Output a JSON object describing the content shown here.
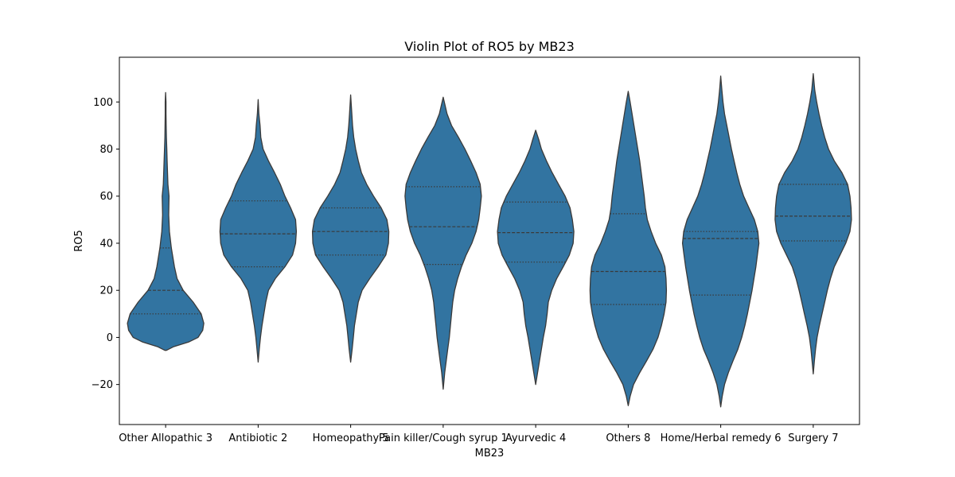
{
  "chart_data": {
    "type": "violin",
    "title": "Violin Plot of RO5 by MB23",
    "xlabel": "MB23",
    "ylabel": "RO5",
    "ylim": [
      -37,
      119
    ],
    "yticks": [
      -20,
      0,
      20,
      40,
      60,
      80,
      100
    ],
    "grid": false,
    "fill_color": "#3274a1",
    "line_color": "#3a3a3a",
    "categories": [
      "Other Allopathic 3",
      "Antibiotic 2",
      "Homeopathy 5",
      "Pain killer/Cough syrup 1",
      "Ayurvedic 4",
      "Others 8",
      "Home/Herbal remedy 6",
      "Surgery 7"
    ],
    "quartiles": [
      {
        "q1": 10,
        "median": 20,
        "q3": 38
      },
      {
        "q1": 30,
        "median": 44,
        "q3": 58
      },
      {
        "q1": 35,
        "median": 45,
        "q3": 55
      },
      {
        "q1": 31,
        "median": 47,
        "q3": 64
      },
      {
        "q1": 32,
        "median": 44.5,
        "q3": 57.5
      },
      {
        "q1": 14,
        "median": 28,
        "q3": 52.5
      },
      {
        "q1": 18,
        "median": 42,
        "q3": 45
      },
      {
        "q1": 41,
        "median": 51.5,
        "q3": 65
      }
    ],
    "violin_profiles": [
      {
        "y": [
          -5.5,
          -4,
          -2,
          0,
          3,
          6,
          10,
          15,
          20,
          25,
          30,
          38,
          45,
          52,
          60,
          65,
          70,
          75,
          80,
          85,
          90,
          95,
          100,
          104
        ],
        "density": [
          0.02,
          0.2,
          0.6,
          0.85,
          0.97,
          1.0,
          0.93,
          0.72,
          0.46,
          0.3,
          0.23,
          0.15,
          0.1,
          0.08,
          0.09,
          0.06,
          0.05,
          0.04,
          0.03,
          0.02,
          0.015,
          0.01,
          0.01,
          0.0
        ]
      },
      {
        "y": [
          -10.5,
          -5,
          0,
          5,
          10,
          15,
          20,
          25,
          30,
          35,
          40,
          45,
          50,
          55,
          60,
          65,
          70,
          75,
          80,
          85,
          90,
          95,
          101
        ],
        "density": [
          0.0,
          0.03,
          0.06,
          0.1,
          0.15,
          0.2,
          0.27,
          0.45,
          0.7,
          0.9,
          0.98,
          1.0,
          0.98,
          0.85,
          0.7,
          0.58,
          0.43,
          0.27,
          0.13,
          0.07,
          0.05,
          0.02,
          0.0
        ]
      },
      {
        "y": [
          -10.5,
          -5,
          0,
          5,
          10,
          15,
          20,
          25,
          30,
          35,
          40,
          45,
          50,
          55,
          60,
          65,
          70,
          75,
          80,
          85,
          90,
          95,
          103
        ],
        "density": [
          0.0,
          0.04,
          0.07,
          0.1,
          0.15,
          0.2,
          0.3,
          0.5,
          0.72,
          0.92,
          0.99,
          1.0,
          0.95,
          0.8,
          0.6,
          0.42,
          0.28,
          0.2,
          0.13,
          0.08,
          0.05,
          0.03,
          0.0
        ]
      },
      {
        "y": [
          -22,
          -15,
          -10,
          -5,
          0,
          5,
          10,
          15,
          20,
          25,
          30,
          35,
          40,
          45,
          50,
          55,
          60,
          65,
          70,
          75,
          80,
          85,
          90,
          95,
          102
        ],
        "density": [
          0.0,
          0.04,
          0.08,
          0.12,
          0.16,
          0.19,
          0.22,
          0.25,
          0.3,
          0.38,
          0.48,
          0.6,
          0.75,
          0.86,
          0.93,
          0.97,
          1.0,
          0.97,
          0.86,
          0.72,
          0.57,
          0.4,
          0.22,
          0.1,
          0.0
        ]
      },
      {
        "y": [
          -20,
          -15,
          -10,
          -5,
          0,
          5,
          10,
          15,
          20,
          25,
          30,
          35,
          40,
          45,
          50,
          55,
          60,
          65,
          70,
          75,
          80,
          84,
          88
        ],
        "density": [
          0.0,
          0.05,
          0.1,
          0.15,
          0.2,
          0.26,
          0.3,
          0.33,
          0.42,
          0.55,
          0.72,
          0.88,
          0.98,
          1.0,
          0.96,
          0.9,
          0.77,
          0.6,
          0.43,
          0.28,
          0.15,
          0.08,
          0.0
        ]
      },
      {
        "y": [
          -29,
          -25,
          -20,
          -15,
          -10,
          -5,
          0,
          5,
          10,
          15,
          20,
          25,
          30,
          35,
          40,
          45,
          50,
          55,
          60,
          65,
          70,
          75,
          80,
          85,
          90,
          95,
          100,
          104.5
        ],
        "density": [
          0.0,
          0.05,
          0.14,
          0.3,
          0.48,
          0.65,
          0.78,
          0.87,
          0.94,
          0.99,
          1.0,
          0.99,
          0.96,
          0.87,
          0.72,
          0.6,
          0.5,
          0.45,
          0.42,
          0.38,
          0.34,
          0.3,
          0.25,
          0.2,
          0.15,
          0.1,
          0.05,
          0.0
        ]
      },
      {
        "y": [
          -29.5,
          -25,
          -20,
          -15,
          -10,
          -5,
          0,
          5,
          10,
          15,
          20,
          25,
          30,
          35,
          40,
          45,
          50,
          55,
          60,
          65,
          70,
          75,
          80,
          85,
          90,
          95,
          100,
          105,
          111
        ],
        "density": [
          0.0,
          0.04,
          0.1,
          0.2,
          0.32,
          0.45,
          0.55,
          0.63,
          0.7,
          0.76,
          0.82,
          0.87,
          0.92,
          0.96,
          1.0,
          0.97,
          0.88,
          0.74,
          0.6,
          0.5,
          0.42,
          0.35,
          0.28,
          0.22,
          0.16,
          0.1,
          0.06,
          0.03,
          0.0
        ]
      },
      {
        "y": [
          -15.5,
          -10,
          -5,
          0,
          5,
          10,
          15,
          20,
          25,
          30,
          35,
          40,
          45,
          50,
          55,
          60,
          65,
          70,
          75,
          80,
          85,
          90,
          95,
          100,
          105,
          112
        ],
        "density": [
          0.0,
          0.03,
          0.06,
          0.1,
          0.16,
          0.23,
          0.3,
          0.37,
          0.45,
          0.55,
          0.7,
          0.85,
          0.96,
          1.0,
          0.99,
          0.96,
          0.9,
          0.75,
          0.55,
          0.4,
          0.3,
          0.22,
          0.15,
          0.09,
          0.04,
          0.0
        ]
      }
    ]
  }
}
